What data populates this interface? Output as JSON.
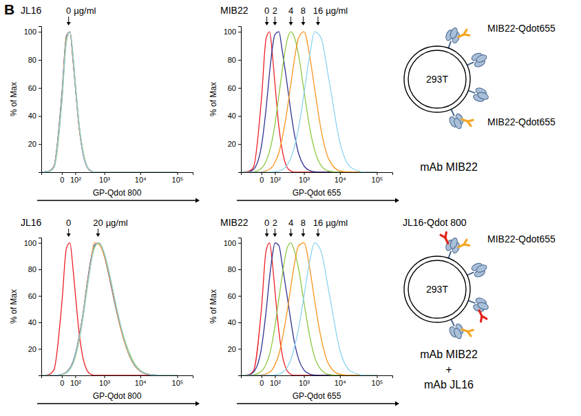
{
  "panel_letter": "B",
  "chart_data": [
    {
      "type": "line",
      "title": "JL16",
      "log": "x",
      "x_label": "GP-Qdot 800",
      "y_label": "% of Max",
      "x": [
        -200,
        -100,
        -50,
        0,
        25,
        50,
        75,
        100,
        150,
        200,
        300,
        400,
        500,
        700,
        1000,
        1500,
        2000,
        3000,
        5000,
        10000,
        20000,
        50000,
        100000
      ],
      "xlim": [
        -200,
        262144
      ],
      "ylim": [
        0,
        104
      ],
      "xticks": [
        0,
        {
          "value": 100,
          "label": "10²"
        },
        {
          "value": 1000,
          "label": "10³"
        },
        {
          "value": 10000,
          "label": "10⁴"
        },
        {
          "value": 100000,
          "label": "10⁵"
        }
      ],
      "yticks": [
        20,
        40,
        60,
        80,
        100
      ],
      "annotations": [
        {
          "text": "0",
          "x": 40
        }
      ],
      "annotation_unit": "µg/ml",
      "series": [
        {
          "color": "#ee1c25",
          "values": [
            0,
            0.5,
            3.6,
            53,
            95,
            100,
            83,
            63,
            32,
            16,
            3.4,
            0.8,
            0,
            0,
            0,
            0,
            0,
            0,
            0,
            0,
            0,
            0,
            0
          ]
        },
        {
          "color": "#2e3192",
          "values": [
            0,
            0.7,
            4.2,
            56,
            97,
            100,
            81,
            61,
            31,
            15,
            3.1,
            0.7,
            0,
            0,
            0,
            0,
            0,
            0,
            0,
            0,
            0,
            0,
            0
          ]
        },
        {
          "color": "#8dc63f",
          "values": [
            0,
            0.4,
            3.1,
            50,
            93,
            100,
            85,
            64,
            33,
            17,
            3.6,
            0.9,
            0,
            0,
            0,
            0,
            0,
            0,
            0,
            0,
            0,
            0,
            0
          ]
        },
        {
          "color": "#f7941d",
          "values": [
            0,
            0.6,
            3.9,
            54,
            96,
            100,
            82,
            62,
            31,
            16,
            3.3,
            0.8,
            0,
            0,
            0,
            0,
            0,
            0,
            0,
            0,
            0,
            0,
            0
          ]
        },
        {
          "color": "#8ad3f0",
          "values": [
            0,
            0.5,
            3.4,
            52,
            94,
            100,
            84,
            63,
            33,
            16,
            3.5,
            0.9,
            0,
            0,
            0,
            0,
            0,
            0,
            0,
            0,
            0,
            0,
            0
          ]
        }
      ]
    },
    {
      "type": "line",
      "title": "MIB22",
      "log": "x",
      "x_label": "GP-Qdot 655",
      "y_label": "% of Max",
      "x": [
        -200,
        -100,
        -50,
        0,
        25,
        50,
        75,
        100,
        150,
        200,
        300,
        400,
        500,
        700,
        1000,
        1500,
        2000,
        3000,
        5000,
        10000,
        20000,
        50000,
        100000
      ],
      "xlim": [
        -200,
        262144
      ],
      "ylim": [
        0,
        104
      ],
      "xticks": [
        0,
        {
          "value": 100,
          "label": "10²"
        },
        {
          "value": 1000,
          "label": "10³"
        },
        {
          "value": 10000,
          "label": "10⁴"
        },
        {
          "value": 100000,
          "label": "10⁵"
        }
      ],
      "yticks": [
        20,
        40,
        60,
        80,
        100
      ],
      "annotations": [
        {
          "text": "0",
          "x": 30
        },
        {
          "text": "2",
          "x": 100
        },
        {
          "text": "4",
          "x": 400
        },
        {
          "text": "8",
          "x": 950
        },
        {
          "text": "16",
          "x": 2500
        }
      ],
      "annotation_unit": "µg/ml",
      "series": [
        {
          "color": "#ee1c25",
          "values": [
            0,
            0.5,
            3.6,
            53,
            95,
            100,
            83,
            63,
            32,
            16,
            3.4,
            0.8,
            0,
            0,
            0,
            0,
            0,
            0,
            0,
            0,
            0,
            0,
            0
          ]
        },
        {
          "color": "#2e3192",
          "values": [
            0,
            0.2,
            2,
            19,
            45,
            71,
            89,
            98,
            100,
            87,
            63,
            43,
            29,
            13,
            4.5,
            1,
            0.3,
            0,
            0,
            0,
            0,
            0,
            0
          ]
        },
        {
          "color": "#8dc63f",
          "values": [
            0,
            0,
            0.3,
            2.8,
            7.8,
            15,
            24,
            34,
            55,
            72,
            94,
            100,
            97,
            83,
            58,
            30,
            16,
            5,
            0.8,
            0,
            0,
            0,
            0
          ]
        },
        {
          "color": "#f7941d",
          "values": [
            0,
            0,
            0,
            0.3,
            0.9,
            2.2,
            4,
            7,
            14,
            24,
            44,
            63,
            78,
            96,
            100,
            81,
            60,
            31,
            9,
            0.9,
            0,
            0,
            0
          ]
        },
        {
          "color": "#8ad3f0",
          "values": [
            0,
            0,
            0,
            0,
            0,
            0,
            0.1,
            0.3,
            0.8,
            1.7,
            5,
            10,
            17,
            32,
            56,
            85,
            100,
            96,
            66,
            21,
            3.3,
            0,
            0
          ]
        }
      ]
    },
    {
      "type": "line",
      "title": "JL16",
      "log": "x",
      "x_label": "GP-Qdot 800",
      "y_label": "% of Max",
      "x": [
        -200,
        -100,
        -50,
        0,
        25,
        50,
        75,
        100,
        150,
        200,
        300,
        400,
        500,
        700,
        1000,
        1500,
        2000,
        3000,
        5000,
        10000,
        20000,
        50000,
        100000
      ],
      "xlim": [
        -200,
        262144
      ],
      "ylim": [
        0,
        104
      ],
      "xticks": [
        0,
        {
          "value": 100,
          "label": "10²"
        },
        {
          "value": 1000,
          "label": "10³"
        },
        {
          "value": 10000,
          "label": "10⁴"
        },
        {
          "value": 100000,
          "label": "10⁵"
        }
      ],
      "yticks": [
        20,
        40,
        60,
        80,
        100
      ],
      "annotations": [
        {
          "text": "0",
          "x": 40
        },
        {
          "text": "20",
          "x": 650
        }
      ],
      "annotation_unit": "µg/ml",
      "series": [
        {
          "color": "#ee1c25",
          "values": [
            0,
            0.6,
            4,
            55,
            96,
            100,
            82,
            62,
            31,
            15,
            3.2,
            0.7,
            0,
            0,
            0,
            0,
            0,
            0,
            0,
            0,
            0,
            0,
            0
          ]
        },
        {
          "color": "#2e3192",
          "values": [
            0,
            0,
            0,
            0.8,
            2.5,
            5.5,
            10,
            16,
            30,
            44,
            71,
            89,
            98,
            100,
            90,
            70,
            54,
            34,
            15,
            3.2,
            0.4,
            0,
            0
          ]
        },
        {
          "color": "#8dc63f",
          "values": [
            0,
            0,
            0,
            0.6,
            2,
            4.6,
            8.5,
            14,
            27,
            41,
            67,
            86,
            96,
            100,
            92,
            73,
            57,
            36,
            17,
            3.8,
            0.6,
            0,
            0
          ]
        },
        {
          "color": "#f7941d",
          "values": [
            0,
            0,
            0,
            0.7,
            2.3,
            5.2,
            9.4,
            15,
            29,
            43,
            70,
            88,
            100,
            99,
            90,
            71,
            55,
            34,
            15,
            3.3,
            0.5,
            0,
            0
          ]
        },
        {
          "color": "#8ad3f0",
          "values": [
            0,
            0,
            0,
            0.7,
            2.1,
            4.9,
            9,
            15,
            28,
            42,
            68,
            86,
            97,
            100,
            92,
            73,
            57,
            36,
            16,
            3.6,
            0.5,
            0,
            0
          ]
        }
      ]
    },
    {
      "type": "line",
      "title": "MIB22",
      "log": "x",
      "x_label": "GP-Qdot 655",
      "y_label": "% of Max",
      "x": [
        -200,
        -100,
        -50,
        0,
        25,
        50,
        75,
        100,
        150,
        200,
        300,
        400,
        500,
        700,
        1000,
        1500,
        2000,
        3000,
        5000,
        10000,
        20000,
        50000,
        100000
      ],
      "xlim": [
        -200,
        262144
      ],
      "ylim": [
        0,
        104
      ],
      "xticks": [
        0,
        {
          "value": 100,
          "label": "10²"
        },
        {
          "value": 1000,
          "label": "10³"
        },
        {
          "value": 10000,
          "label": "10⁴"
        },
        {
          "value": 100000,
          "label": "10⁵"
        }
      ],
      "yticks": [
        20,
        40,
        60,
        80,
        100
      ],
      "annotations": [
        {
          "text": "0",
          "x": 30
        },
        {
          "text": "2",
          "x": 100
        },
        {
          "text": "4",
          "x": 400
        },
        {
          "text": "8",
          "x": 950
        },
        {
          "text": "16",
          "x": 2500
        }
      ],
      "annotation_unit": "µg/ml",
      "series": [
        {
          "color": "#ee1c25",
          "values": [
            0,
            0.4,
            3.4,
            51,
            94,
            100,
            84,
            64,
            33,
            16,
            3.5,
            0.8,
            0,
            0,
            0,
            0,
            0,
            0,
            0,
            0,
            0,
            0,
            0
          ]
        },
        {
          "color": "#2e3192",
          "values": [
            0,
            0.3,
            2.4,
            21,
            48,
            74,
            91,
            100,
            98,
            84,
            60,
            41,
            27,
            12,
            4,
            0.9,
            0.2,
            0,
            0,
            0,
            0,
            0,
            0
          ]
        },
        {
          "color": "#8dc63f",
          "values": [
            0,
            0,
            0.4,
            3.2,
            8.5,
            16,
            26,
            37,
            58,
            75,
            96,
            100,
            95,
            80,
            55,
            28,
            14,
            4.5,
            0.7,
            0,
            0,
            0,
            0
          ]
        },
        {
          "color": "#f7941d",
          "values": [
            0,
            0,
            0,
            0.4,
            1,
            2.5,
            4.5,
            8,
            16,
            27,
            48,
            67,
            82,
            98,
            100,
            79,
            57,
            29,
            8,
            0.8,
            0,
            0,
            0
          ]
        },
        {
          "color": "#8ad3f0",
          "values": [
            0,
            0,
            0,
            0,
            0,
            0,
            0.1,
            0.4,
            1,
            2,
            6,
            12,
            20,
            36,
            60,
            88,
            100,
            94,
            63,
            19,
            3,
            0,
            0
          ]
        }
      ]
    }
  ],
  "diagrams": [
    {
      "cell": "293T",
      "labels": [
        "MIB22-Qdot655",
        "MIB22-Qdot655"
      ],
      "caption": [
        "mAb MIB22"
      ]
    },
    {
      "cell": "293T",
      "labels": [
        "JL16-Qdot 800",
        "MIB22-Qdot655"
      ],
      "caption": [
        "mAb MIB22",
        "+",
        "mAb JL16"
      ]
    }
  ]
}
